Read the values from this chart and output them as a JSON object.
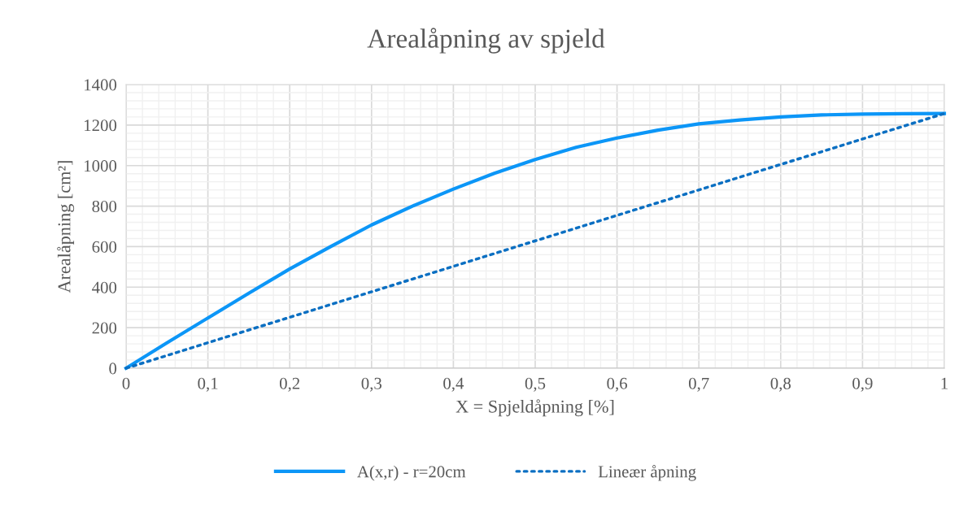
{
  "chart_data": {
    "type": "line",
    "title": "Arealåpning av spjeld",
    "xlabel": "X = Spjeldåpning [%]",
    "ylabel": "Arealåpning [cm²]",
    "x": [
      0,
      0.05,
      0.1,
      0.15,
      0.2,
      0.25,
      0.3,
      0.35,
      0.4,
      0.45,
      0.5,
      0.55,
      0.6,
      0.65,
      0.7,
      0.75,
      0.8,
      0.85,
      0.9,
      0.95,
      1
    ],
    "series": [
      {
        "name": "A(x,r) - r=20cm",
        "color": "#0c96f7",
        "line_style": "solid",
        "values": [
          0,
          125,
          248,
          370,
          490,
          600,
          707,
          800,
          884,
          962,
          1030,
          1090,
          1136,
          1175,
          1206,
          1225,
          1240,
          1250,
          1254,
          1256,
          1257
        ]
      },
      {
        "name": "Lineær åpning",
        "color": "#0b6fc2",
        "line_style": "dotted",
        "x": [
          0,
          1
        ],
        "values": [
          0,
          1257
        ]
      }
    ],
    "xlim": [
      0,
      1
    ],
    "xticks": [
      0,
      {
        "value": 0.1,
        "label": "0,1"
      },
      {
        "value": 0.2,
        "label": "0,2"
      },
      {
        "value": 0.3,
        "label": "0,3"
      },
      {
        "value": 0.4,
        "label": "0,4"
      },
      {
        "value": 0.5,
        "label": "0,5"
      },
      {
        "value": 0.6,
        "label": "0,6"
      },
      {
        "value": 0.7,
        "label": "0,7"
      },
      {
        "value": 0.8,
        "label": "0,8"
      },
      {
        "value": 0.9,
        "label": "0,9"
      },
      1
    ],
    "ylim": [
      0,
      1400
    ],
    "yticks": [
      0,
      200,
      400,
      600,
      800,
      1000,
      1200,
      1400
    ],
    "grid": true,
    "legend": "bottom",
    "marker": "none"
  }
}
